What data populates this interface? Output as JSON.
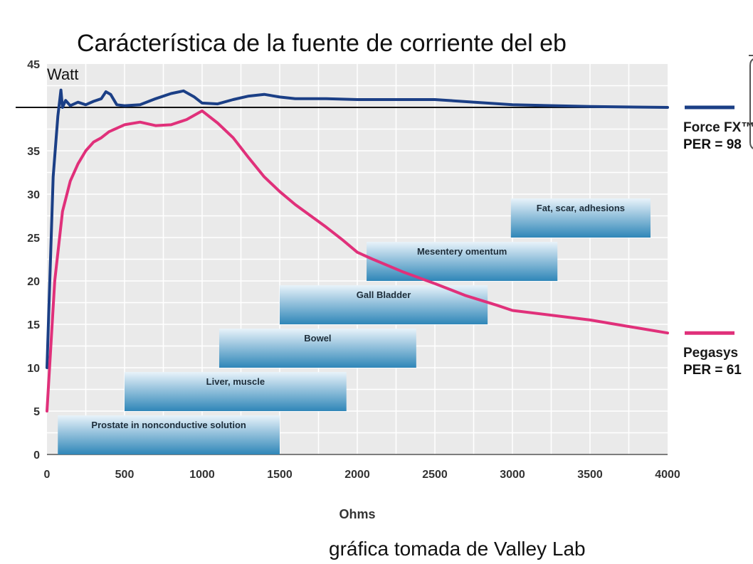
{
  "title": "Carácterística de la fuente de corriente del eb",
  "source_note": "gráfica tomada de Valley Lab",
  "colors": {
    "force_fx": "#1b3f86",
    "pegasys": "#e0307a",
    "band_top": "#e8f3fa",
    "band_bottom": "#2f86b8",
    "background": "#eaeaea",
    "grid": "#ffffff"
  },
  "chart_data": {
    "type": "line",
    "xlabel": "Ohms",
    "ylabel": "Watt",
    "xlim": [
      0,
      4000
    ],
    "ylim": [
      0,
      45
    ],
    "x_ticks": [
      0,
      500,
      1000,
      1500,
      2000,
      2500,
      3000,
      3500,
      4000
    ],
    "y_ticks": [
      0,
      5,
      10,
      15,
      20,
      25,
      30,
      35,
      45
    ],
    "reference_line": 40,
    "series": [
      {
        "name": "Force FX™",
        "per": "PER = 98",
        "color": "#1b3f86",
        "points": [
          [
            0,
            10
          ],
          [
            40,
            32
          ],
          [
            70,
            39
          ],
          [
            90,
            42
          ],
          [
            100,
            40
          ],
          [
            120,
            40.8
          ],
          [
            150,
            40.2
          ],
          [
            200,
            40.6
          ],
          [
            250,
            40.3
          ],
          [
            300,
            40.7
          ],
          [
            350,
            41
          ],
          [
            380,
            41.8
          ],
          [
            410,
            41.5
          ],
          [
            450,
            40.3
          ],
          [
            500,
            40.2
          ],
          [
            600,
            40.3
          ],
          [
            700,
            41
          ],
          [
            800,
            41.6
          ],
          [
            880,
            41.9
          ],
          [
            950,
            41.2
          ],
          [
            1000,
            40.5
          ],
          [
            1100,
            40.4
          ],
          [
            1200,
            40.9
          ],
          [
            1300,
            41.3
          ],
          [
            1400,
            41.5
          ],
          [
            1500,
            41.2
          ],
          [
            1600,
            41
          ],
          [
            1800,
            41
          ],
          [
            2000,
            40.9
          ],
          [
            2500,
            40.9
          ],
          [
            3000,
            40.3
          ],
          [
            3500,
            40.1
          ],
          [
            4000,
            40
          ]
        ]
      },
      {
        "name": "Pegasys",
        "per": "PER = 61",
        "color": "#e0307a",
        "points": [
          [
            0,
            5
          ],
          [
            50,
            20
          ],
          [
            100,
            28
          ],
          [
            150,
            31.5
          ],
          [
            200,
            33.5
          ],
          [
            250,
            35
          ],
          [
            300,
            36
          ],
          [
            350,
            36.5
          ],
          [
            400,
            37.2
          ],
          [
            500,
            38
          ],
          [
            600,
            38.3
          ],
          [
            700,
            37.9
          ],
          [
            800,
            38
          ],
          [
            900,
            38.6
          ],
          [
            1000,
            39.6
          ],
          [
            1100,
            38.2
          ],
          [
            1200,
            36.5
          ],
          [
            1300,
            34.2
          ],
          [
            1400,
            32
          ],
          [
            1500,
            30.3
          ],
          [
            1600,
            28.8
          ],
          [
            1700,
            27.5
          ],
          [
            1800,
            26.2
          ],
          [
            1900,
            24.8
          ],
          [
            2000,
            23.3
          ],
          [
            2100,
            22.5
          ],
          [
            2300,
            21
          ],
          [
            2500,
            19.7
          ],
          [
            2700,
            18.3
          ],
          [
            2900,
            17.2
          ],
          [
            3000,
            16.6
          ],
          [
            3500,
            15.5
          ],
          [
            3800,
            14.6
          ],
          [
            4000,
            14
          ]
        ]
      }
    ],
    "bands": [
      {
        "label": "Prostate in nonconductive solution",
        "x": [
          70,
          1500
        ],
        "y": [
          0,
          4.5
        ]
      },
      {
        "label": "Liver, muscle",
        "x": [
          500,
          1930
        ],
        "y": [
          5,
          9.5
        ]
      },
      {
        "label": "Bowel",
        "x": [
          1110,
          2380
        ],
        "y": [
          10,
          14.5
        ]
      },
      {
        "label": "Gall Bladder",
        "x": [
          1500,
          2840
        ],
        "y": [
          15,
          19.5
        ]
      },
      {
        "label": "Mesentery omentum",
        "x": [
          2060,
          3290
        ],
        "y": [
          20,
          24.5
        ]
      },
      {
        "label": "Fat, scar, adhesions",
        "x": [
          2990,
          3890
        ],
        "y": [
          25,
          29.5
        ]
      }
    ]
  }
}
